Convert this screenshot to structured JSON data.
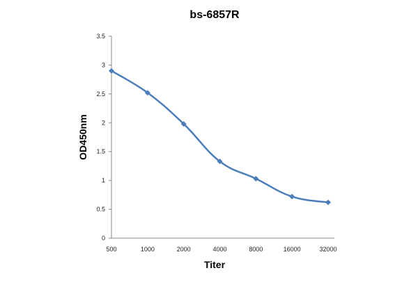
{
  "chart_data": {
    "type": "line",
    "title": "bs-6857R",
    "xlabel": "Titer",
    "ylabel": "OD450nm",
    "categories": [
      "500",
      "1000",
      "2000",
      "4000",
      "8000",
      "16000",
      "32000"
    ],
    "series": [
      {
        "values": [
          2.9,
          2.52,
          1.98,
          1.33,
          1.03,
          0.72,
          0.62
        ],
        "color": "#4a7ebb"
      }
    ],
    "ylim": [
      0,
      3.5
    ],
    "yticks": [
      "0",
      "0.5",
      "1",
      "1.5",
      "2",
      "2.5",
      "3",
      "3.5"
    ],
    "grid": false,
    "legend": "none",
    "marker": "diamond",
    "smooth": true
  }
}
